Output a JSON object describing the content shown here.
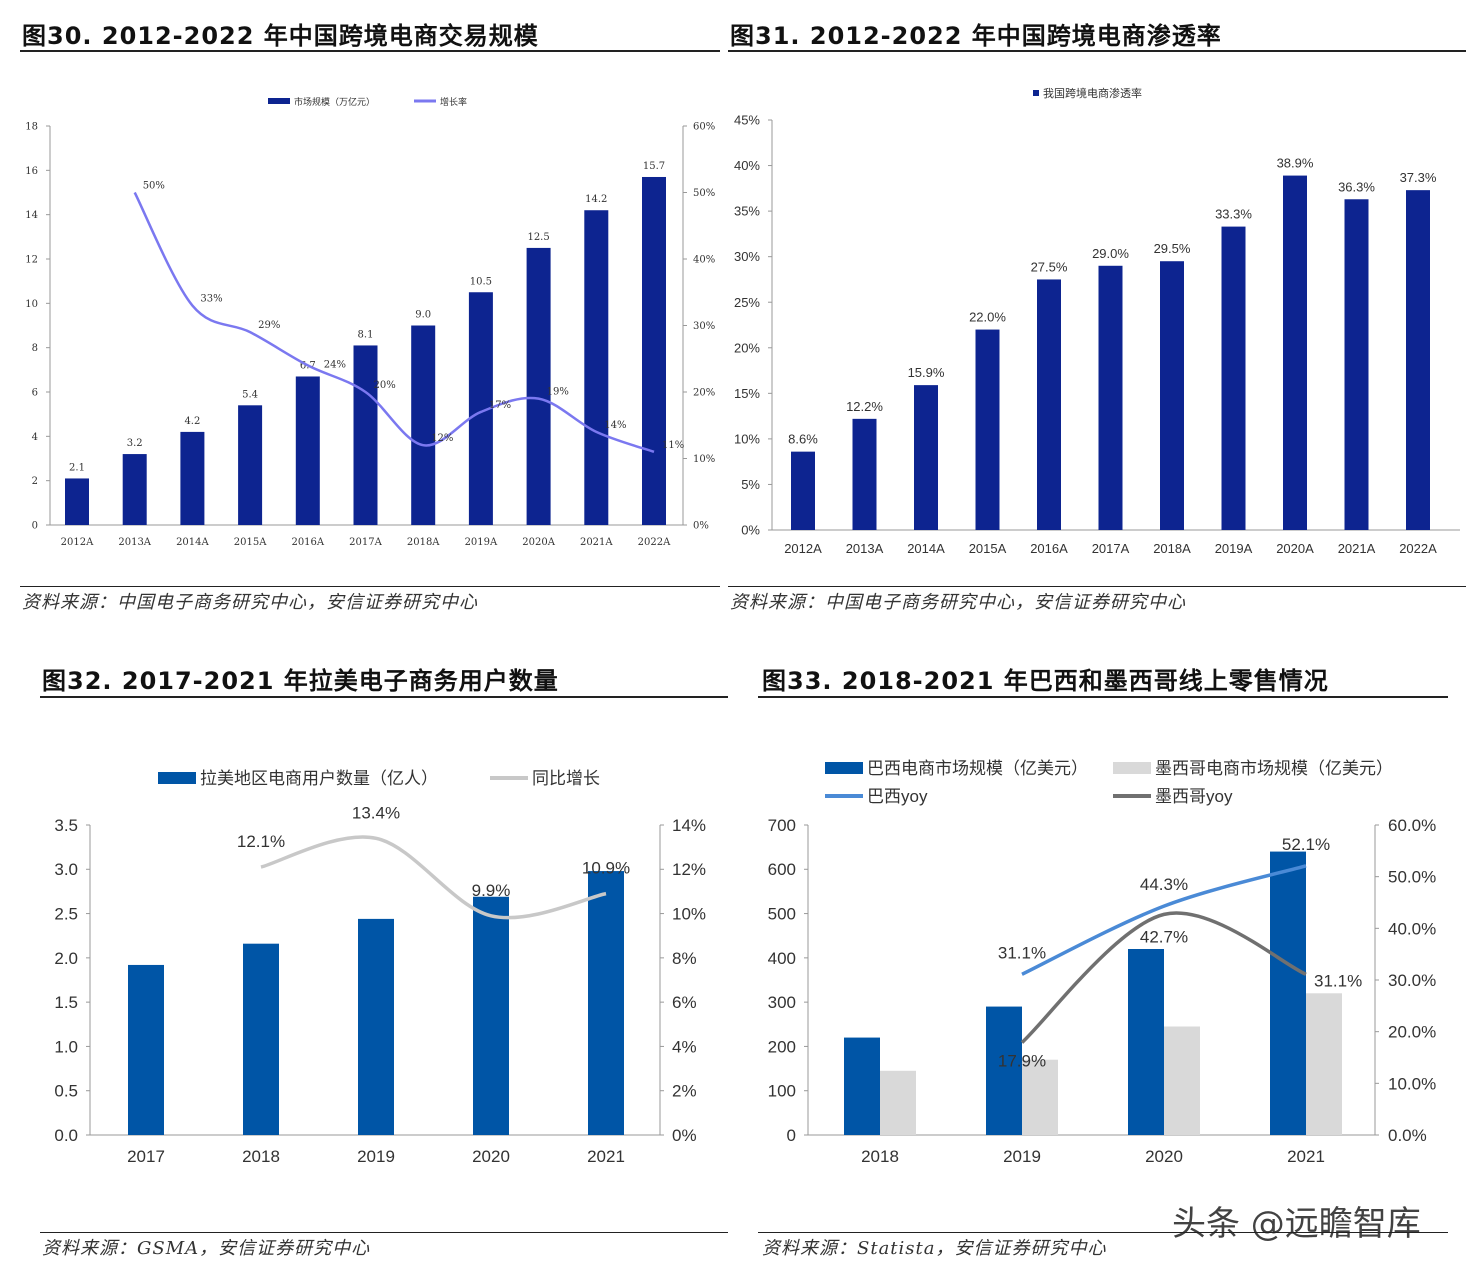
{
  "panels": [
    {
      "title": "图30. 2012-2022 年中国跨境电商交易规模",
      "source": "资料来源：中国电子商务研究中心，安信证券研究中心"
    },
    {
      "title": "图31. 2012-2022 年中国跨境电商渗透率",
      "source": "资料来源：中国电子商务研究中心，安信证券研究中心"
    },
    {
      "title": "图32. 2017-2021 年拉美电子商务用户数量",
      "source": "资料来源：GSMA，安信证券研究中心"
    },
    {
      "title": "图33. 2018-2021 年巴西和墨西哥线上零售情况",
      "source": "资料来源：Statista，安信证券研究中心"
    }
  ],
  "watermark": "头条 @远瞻智库",
  "chart_data": [
    {
      "type": "bar+line",
      "categories": [
        "2012A",
        "2013A",
        "2014A",
        "2015A",
        "2016A",
        "2017A",
        "2018A",
        "2019A",
        "2020A",
        "2021A",
        "2022A"
      ],
      "series": [
        {
          "name": "市场规模（万亿元）",
          "type": "bar",
          "axis": "left",
          "color": "#0d2490",
          "values": [
            2.1,
            3.2,
            4.2,
            5.4,
            6.7,
            8.1,
            9.0,
            10.5,
            12.5,
            14.2,
            15.7
          ],
          "labels": [
            "2.1",
            "3.2",
            "4.2",
            "5.4",
            "6.7",
            "8.1",
            "9.0",
            "10.5",
            "12.5",
            "14.2",
            "15.7"
          ]
        },
        {
          "name": "增长率",
          "type": "line",
          "axis": "right",
          "color": "#7b78f0",
          "values": [
            null,
            50,
            33,
            29,
            24,
            20,
            12,
            17,
            19,
            14,
            11
          ],
          "labels": [
            "",
            "50%",
            "33%",
            "29%",
            "24%",
            "20%",
            "12%",
            "17%",
            "19%",
            "14%",
            "11%"
          ]
        }
      ],
      "left_axis": {
        "ylim": [
          0,
          18
        ],
        "ticks": [
          "0",
          "2",
          "4",
          "6",
          "8",
          "10",
          "12",
          "14",
          "16",
          "18"
        ]
      },
      "right_axis": {
        "ylim": [
          0,
          60
        ],
        "ticks": [
          "0%",
          "10%",
          "20%",
          "30%",
          "40%",
          "50%",
          "60%"
        ]
      },
      "legend": "top-center"
    },
    {
      "type": "bar",
      "categories": [
        "2012A",
        "2013A",
        "2014A",
        "2015A",
        "2016A",
        "2017A",
        "2018A",
        "2019A",
        "2020A",
        "2021A",
        "2022A"
      ],
      "series": [
        {
          "name": "我国跨境电商渗透率",
          "type": "bar",
          "axis": "left",
          "color": "#0d2490",
          "values": [
            8.6,
            12.2,
            15.9,
            22.0,
            27.5,
            29.0,
            29.5,
            33.3,
            38.9,
            36.3,
            37.3
          ],
          "labels": [
            "8.6%",
            "12.2%",
            "15.9%",
            "22.0%",
            "27.5%",
            "29.0%",
            "29.5%",
            "33.3%",
            "38.9%",
            "36.3%",
            "37.3%"
          ]
        }
      ],
      "left_axis": {
        "ylim": [
          0,
          45
        ],
        "ticks": [
          "0%",
          "5%",
          "10%",
          "15%",
          "20%",
          "25%",
          "30%",
          "35%",
          "40%",
          "45%"
        ]
      },
      "legend": "top-center"
    },
    {
      "type": "bar+line",
      "categories": [
        "2017",
        "2018",
        "2019",
        "2020",
        "2021"
      ],
      "series": [
        {
          "name": "拉美地区电商用户数量（亿人）",
          "type": "bar",
          "axis": "left",
          "color": "#0055a6",
          "values": [
            1.92,
            2.16,
            2.44,
            2.69,
            2.98
          ],
          "labels": [
            "",
            "",
            "",
            "",
            ""
          ]
        },
        {
          "name": "同比增长",
          "type": "line",
          "axis": "right",
          "color": "#c8c8c8",
          "values": [
            null,
            12.1,
            13.4,
            9.9,
            10.9
          ],
          "labels": [
            "",
            "12.1%",
            "13.4%",
            "9.9%",
            "10.9%"
          ]
        }
      ],
      "left_axis": {
        "ylim": [
          0,
          3.5
        ],
        "ticks": [
          "0.0",
          "0.5",
          "1.0",
          "1.5",
          "2.0",
          "2.5",
          "3.0",
          "3.5"
        ]
      },
      "right_axis": {
        "ylim": [
          0,
          14
        ],
        "ticks": [
          "0%",
          "2%",
          "4%",
          "6%",
          "8%",
          "10%",
          "12%",
          "14%"
        ]
      },
      "legend": "top-center"
    },
    {
      "type": "bar+line",
      "categories": [
        "2018",
        "2019",
        "2020",
        "2021"
      ],
      "series": [
        {
          "name": "巴西电商市场规模（亿美元）",
          "type": "bar",
          "axis": "left",
          "color": "#0055a6",
          "values": [
            220,
            290,
            420,
            640
          ],
          "labels": [
            "",
            "",
            "",
            ""
          ]
        },
        {
          "name": "墨西哥电商市场规模（亿美元）",
          "type": "bar",
          "axis": "left",
          "color": "#d9d9d9",
          "values": [
            145,
            170,
            245,
            320
          ],
          "labels": [
            "",
            "",
            "",
            ""
          ]
        },
        {
          "name": "巴西yoy",
          "type": "line",
          "axis": "right",
          "color": "#4a8ad6",
          "values": [
            null,
            31.1,
            44.3,
            52.1
          ],
          "labels": [
            "",
            "31.1%",
            "44.3%",
            "52.1%"
          ]
        },
        {
          "name": "墨西哥yoy",
          "type": "line",
          "axis": "right",
          "color": "#707070",
          "values": [
            null,
            17.9,
            42.7,
            31.1
          ],
          "labels": [
            "",
            "17.9%",
            "42.7%",
            "31.1%"
          ]
        }
      ],
      "left_axis": {
        "ylim": [
          0,
          700
        ],
        "ticks": [
          "0",
          "100",
          "200",
          "300",
          "400",
          "500",
          "600",
          "700"
        ]
      },
      "right_axis": {
        "ylim": [
          0,
          60
        ],
        "ticks": [
          "0.0%",
          "10.0%",
          "20.0%",
          "30.0%",
          "40.0%",
          "50.0%",
          "60.0%"
        ]
      },
      "legend": "top"
    }
  ]
}
